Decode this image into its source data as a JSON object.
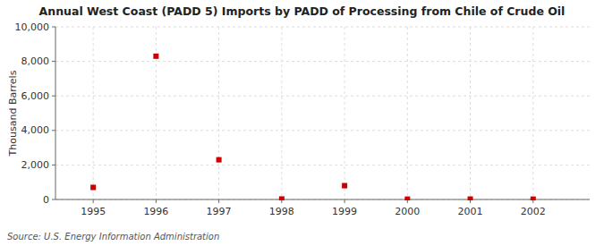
{
  "chart_data": {
    "type": "scatter",
    "title": "Annual West Coast (PADD 5) Imports by PADD of Processing from Chile of Crude Oil",
    "y_label": "Thousand Barrels",
    "annotations": [
      "Source: U.S. Energy Information Administration"
    ],
    "x": [
      1995,
      1996,
      1997,
      1998,
      1999,
      2000,
      2001,
      2002
    ],
    "values": [
      700,
      8300,
      2300,
      30,
      800,
      20,
      25,
      20
    ],
    "color": "#cc0000",
    "marker": "square",
    "xlim": [
      1994.4,
      2002.9
    ],
    "ylim": [
      0,
      10000
    ],
    "xticks": [
      1995,
      1996,
      1997,
      1998,
      1999,
      2000,
      2001,
      2002
    ],
    "yticks": [
      0,
      {
        "value": 2000,
        "label": "2,000"
      },
      {
        "value": 4000,
        "label": "4,000"
      },
      {
        "value": 6000,
        "label": "6,000"
      },
      {
        "value": 8000,
        "label": "8,000"
      },
      {
        "value": 10000,
        "label": "10,000"
      }
    ],
    "grid": true
  }
}
